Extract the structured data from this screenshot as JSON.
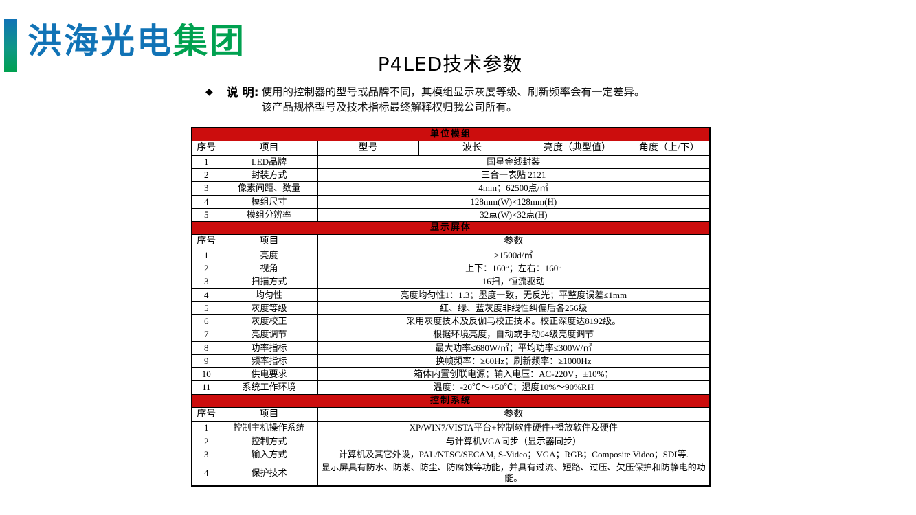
{
  "colors": {
    "header_red": "#CC0D0D",
    "logo_blue": "#1173B6",
    "logo_green": "#00A150"
  },
  "logo": {
    "text_blue": "洪海光电",
    "text_green": "集团"
  },
  "title": "P4LED技术参数",
  "note": {
    "bullet": "◆",
    "label": "说 明:",
    "line1": "使用的控制器的型号或品牌不同，其模组显示灰度等级、刷新频率会有一定差异。",
    "line2": "该产品规格型号及技术指标最终解释权归我公司所有。"
  },
  "table": {
    "sections": [
      {
        "title": "单位模组",
        "columns": [
          "序号",
          "项目",
          "型号",
          "波长",
          "亮度（典型值）",
          "角度（上/下）"
        ],
        "rows": [
          {
            "no": "1",
            "item": "LED品牌",
            "value": "国星金线封装"
          },
          {
            "no": "2",
            "item": "封装方式",
            "value": "三合一表贴 2121"
          },
          {
            "no": "3",
            "item": "像素间距、数量",
            "value": "4mm；62500点/㎡"
          },
          {
            "no": "4",
            "item": "模组尺寸",
            "value": "128mm(W)×128mm(H)"
          },
          {
            "no": "5",
            "item": "模组分辨率",
            "value": "32点(W)×32点(H)"
          }
        ]
      },
      {
        "title": "显示屏体",
        "columns": [
          "序号",
          "项目",
          "参数"
        ],
        "rows": [
          {
            "no": "1",
            "item": "亮度",
            "value": "≥1500d/㎡"
          },
          {
            "no": "2",
            "item": "视角",
            "value": "上下：160°；左右：160°"
          },
          {
            "no": "3",
            "item": "扫描方式",
            "value": "16扫，恒流驱动"
          },
          {
            "no": "4",
            "item": "均匀性",
            "value": "亮度均匀性1：1.3；墨度一致，无反光；平整度误差≤1mm"
          },
          {
            "no": "5",
            "item": "灰度等级",
            "value": "红、绿、蓝灰度非线性纠偏后各256级"
          },
          {
            "no": "6",
            "item": "灰度校正",
            "value": "采用灰度技术及反伽马校正技术。校正深度达8192级。"
          },
          {
            "no": "7",
            "item": "亮度调节",
            "value": "根据环境亮度，自动或手动64级亮度调节"
          },
          {
            "no": "8",
            "item": "功率指标",
            "value": "最大功率≤680W/㎡；平均功率≤300W/㎡"
          },
          {
            "no": "9",
            "item": "频率指标",
            "value": "换帧频率：≥60Hz；刷新频率：≥1000Hz"
          },
          {
            "no": "10",
            "item": "供电要求",
            "value": "箱体内置创联电源；输入电压：AC-220V，±10%；"
          },
          {
            "no": "11",
            "item": "系统工作环境",
            "value": "温度：-20℃～+50℃；湿度10%～90%RH"
          }
        ]
      },
      {
        "title": "控制系统",
        "columns": [
          "序号",
          "项目",
          "参数"
        ],
        "rows": [
          {
            "no": "1",
            "item": "控制主机操作系统",
            "value": "XP/WIN7/VISTA平台+控制软件硬件+播放软件及硬件"
          },
          {
            "no": "2",
            "item": "控制方式",
            "value": "与计算机VGA同步（显示器同步）"
          },
          {
            "no": "3",
            "item": "输入方式",
            "value": "计算机及其它外设，PAL/NTSC/SECAM, S-Video；VGA；RGB；Composite Video；SDI等."
          },
          {
            "no": "4",
            "item": "保护技术",
            "value": "显示屏具有防水、防潮、防尘、防腐蚀等功能，并具有过流、短路、过压、欠压保护和防静电的功能。"
          }
        ]
      }
    ]
  }
}
